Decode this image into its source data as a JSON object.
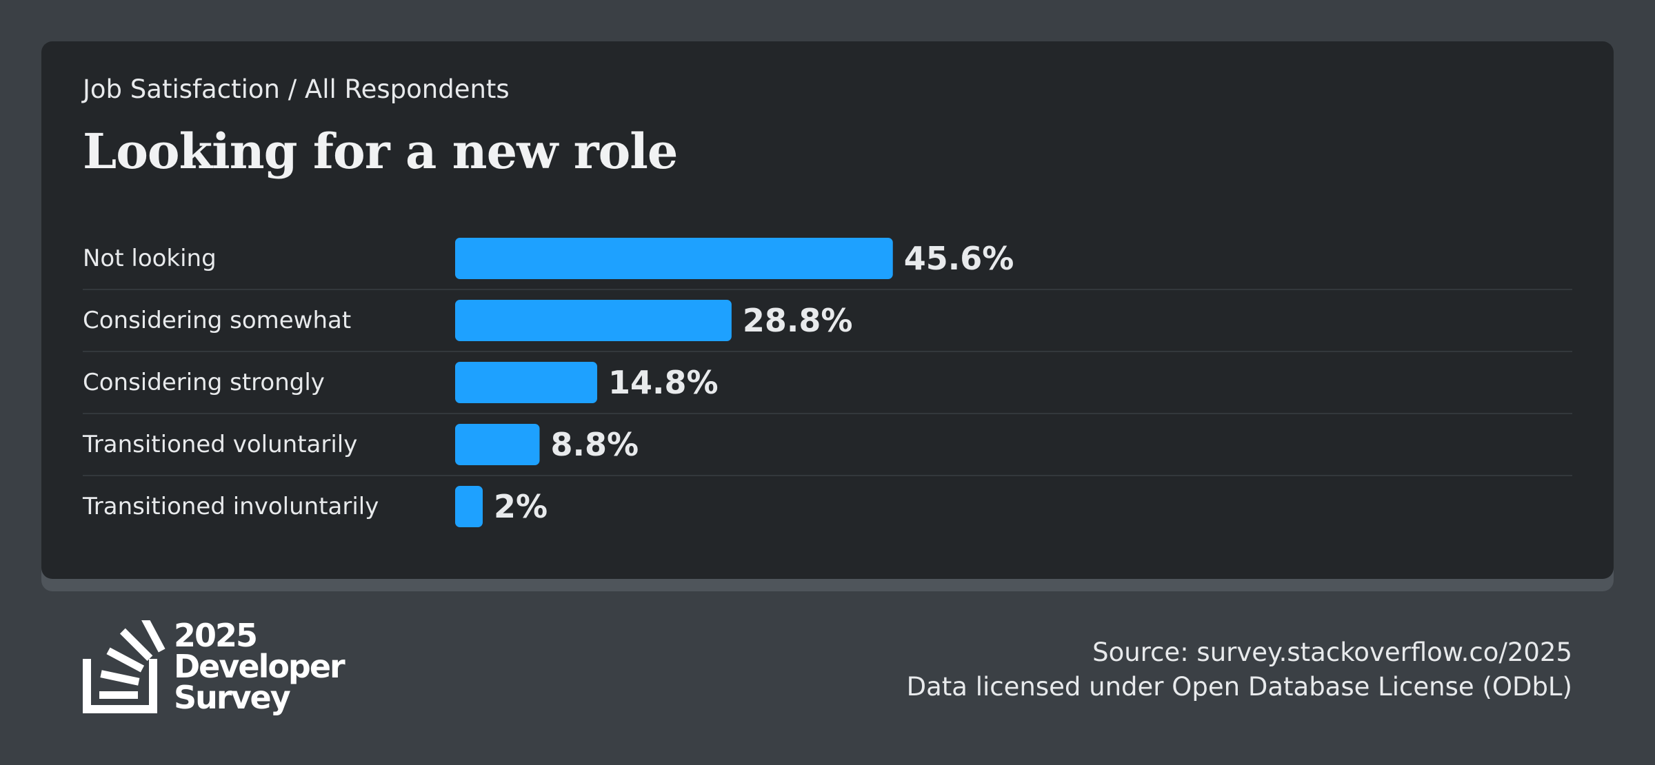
{
  "header": {
    "breadcrumb": "Job Satisfaction / All Respondents",
    "title": "Looking for a new role"
  },
  "chart_data": {
    "type": "bar",
    "orientation": "horizontal",
    "categories": [
      "Not looking",
      "Considering somewhat",
      "Considering strongly",
      "Transitioned voluntarily",
      "Transitioned involuntarily"
    ],
    "values": [
      45.6,
      28.8,
      14.8,
      8.8,
      2
    ],
    "value_labels": [
      "45.6%",
      "28.8%",
      "14.8%",
      "8.8%",
      "2%"
    ],
    "unit": "%",
    "grid": false,
    "legend": "none",
    "colors": {
      "bar": "#1ea1ff"
    }
  },
  "branding": {
    "year": "2025",
    "line1": "Developer",
    "line2": "Survey",
    "icon": "stack-overflow-logo-icon"
  },
  "footer": {
    "source": "Source: survey.stackoverflow.co/2025",
    "license": "Data licensed under Open Database License (ODbL)"
  },
  "colors": {
    "background": "#3b4045",
    "card": "#232629",
    "accent": "#1ea1ff",
    "text": "#e8eaec"
  }
}
